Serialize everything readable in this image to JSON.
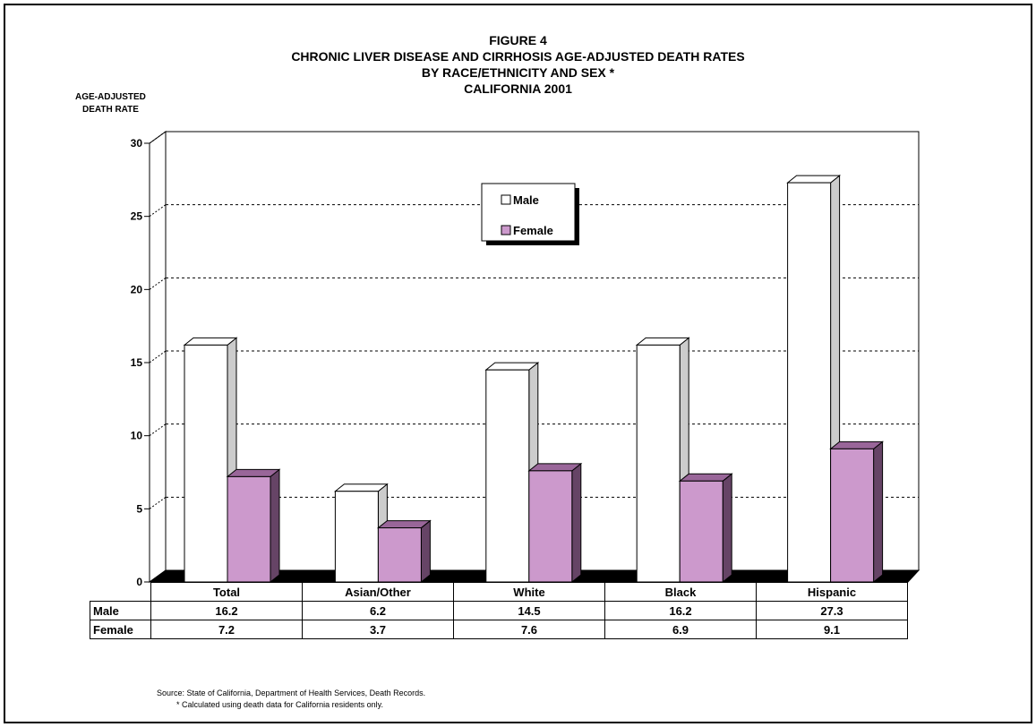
{
  "figure": {
    "title_lines": [
      "FIGURE 4",
      "CHRONIC LIVER DISEASE AND CIRRHOSIS AGE-ADJUSTED DEATH RATES",
      "BY RACE/ETHNICITY AND SEX *",
      "CALIFORNIA 2001"
    ],
    "ylabel_lines": [
      "AGE-ADJUSTED",
      "DEATH RATE"
    ],
    "source": "Source:  State of California, Department of Health Services, Death Records.",
    "footnote": "*  Calculated using death data for California residents only."
  },
  "chart_data": {
    "type": "bar",
    "categories": [
      "Total",
      "Asian/Other",
      "White",
      "Black",
      "Hispanic"
    ],
    "series": [
      {
        "name": "Male",
        "values": [
          16.2,
          6.2,
          14.5,
          16.2,
          27.3
        ],
        "color": "#ffffff"
      },
      {
        "name": "Female",
        "values": [
          7.2,
          3.7,
          7.6,
          6.9,
          9.1
        ],
        "color": "#cc99cc"
      }
    ],
    "ylim": [
      0,
      30
    ],
    "yticks": [
      0,
      5,
      10,
      15,
      20,
      25,
      30
    ],
    "grid": true,
    "legend": "top-center",
    "data_table": true
  },
  "colors": {
    "male_side": "#cccccc",
    "female_side": "#664466",
    "female_top": "#996699",
    "floor": "#000000"
  }
}
